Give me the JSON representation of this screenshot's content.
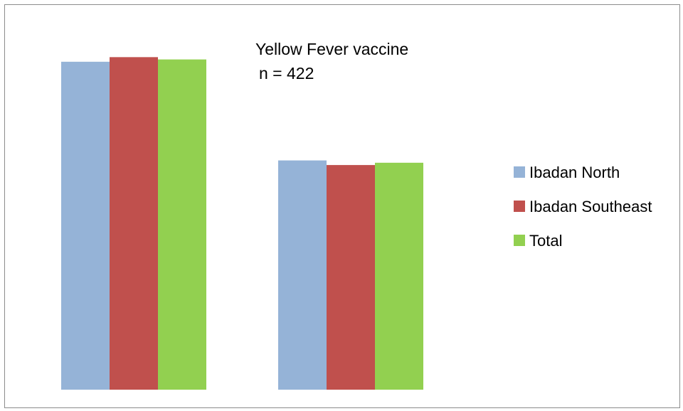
{
  "chart_data": {
    "type": "bar",
    "title": "Yellow Fever vaccine",
    "subtitle": "n = 422",
    "categories": [
      "",
      ""
    ],
    "series": [
      {
        "name": "Ibadan North",
        "color": "#95b3d7",
        "values": [
          85.4,
          59.7
        ]
      },
      {
        "name": "Ibadan Southeast",
        "color": "#c0504d",
        "values": [
          86.6,
          58.5
        ]
      },
      {
        "name": "Total",
        "color": "#92d050",
        "values": [
          86.0,
          59.1
        ]
      }
    ],
    "xlabel": "",
    "ylabel": "",
    "ylim": [
      0,
      100
    ],
    "grid": false,
    "legend_position": "right"
  }
}
